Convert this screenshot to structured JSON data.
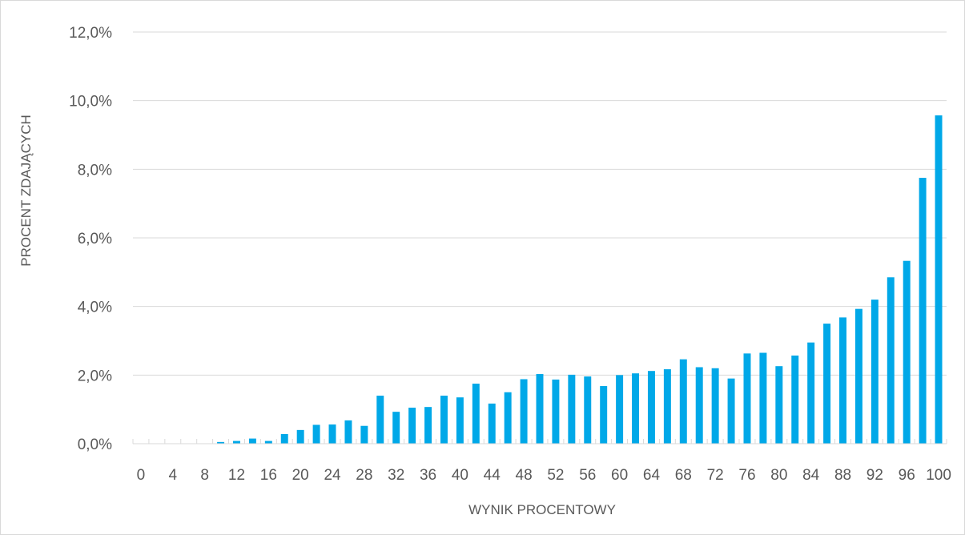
{
  "chart_data": {
    "type": "bar",
    "xlabel": "WYNIK PROCENTOWY",
    "ylabel": "PROCENT ZDAJĄCYCH",
    "ylim": [
      0,
      12
    ],
    "y_ticks": [
      "0,0%",
      "2,0%",
      "4,0%",
      "6,0%",
      "8,0%",
      "10,0%",
      "12,0%"
    ],
    "x_tick_labels": [
      "0",
      "4",
      "8",
      "12",
      "16",
      "20",
      "24",
      "28",
      "32",
      "36",
      "40",
      "44",
      "48",
      "52",
      "56",
      "60",
      "64",
      "68",
      "72",
      "76",
      "80",
      "84",
      "88",
      "92",
      "96",
      "100"
    ],
    "categories": [
      0,
      2,
      4,
      6,
      8,
      10,
      12,
      14,
      16,
      18,
      20,
      22,
      24,
      26,
      28,
      30,
      32,
      34,
      36,
      38,
      40,
      42,
      44,
      46,
      48,
      50,
      52,
      54,
      56,
      58,
      60,
      62,
      64,
      66,
      68,
      70,
      72,
      74,
      76,
      78,
      80,
      82,
      84,
      86,
      88,
      90,
      92,
      94,
      96,
      98,
      100
    ],
    "values": [
      0,
      0,
      0,
      0,
      0,
      0.05,
      0.08,
      0.15,
      0.08,
      0.28,
      0.4,
      0.55,
      0.56,
      0.68,
      0.52,
      1.4,
      0.93,
      1.05,
      1.07,
      1.4,
      1.35,
      1.75,
      1.17,
      1.5,
      1.88,
      2.03,
      1.87,
      2.01,
      1.96,
      1.68,
      2.0,
      2.05,
      2.12,
      2.17,
      2.46,
      2.23,
      2.2,
      1.9,
      2.63,
      2.65,
      2.26,
      2.57,
      2.95,
      3.5,
      3.68,
      3.93,
      4.2,
      4.85,
      5.33,
      7.75,
      9.57
    ],
    "bar_color": "#00a8e8",
    "grid": true
  }
}
